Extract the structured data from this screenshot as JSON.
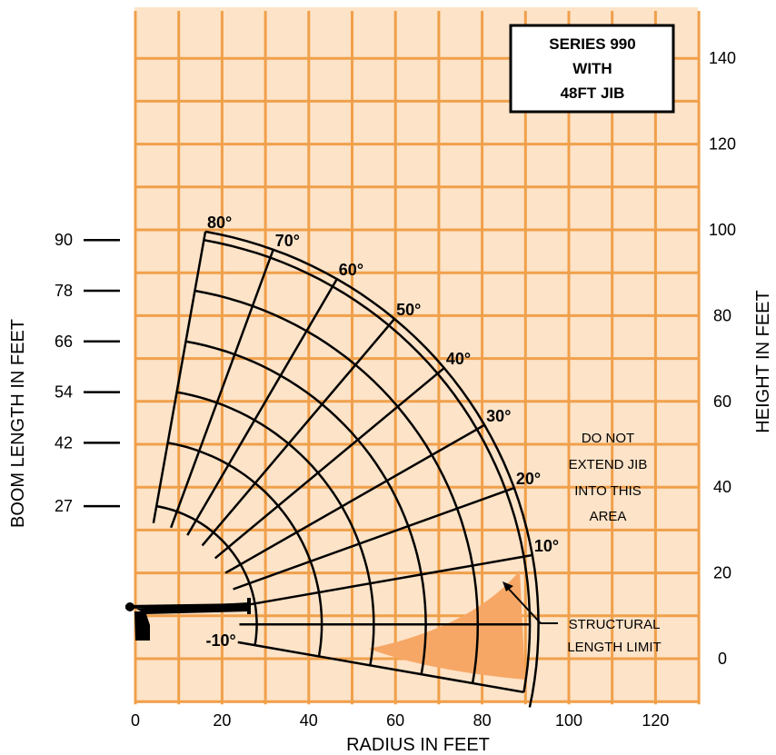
{
  "chart_data": {
    "type": "diagram",
    "title": [
      "SERIES 990",
      "WITH",
      "48FT JIB"
    ],
    "xlabel": "RADIUS IN FEET",
    "ylabel_right": "HEIGHT IN FEET",
    "ylabel_left": "BOOM LENGTH IN FEET",
    "x_ticks": [
      0,
      20,
      40,
      60,
      80,
      100,
      120
    ],
    "y_ticks": [
      0,
      20,
      40,
      60,
      80,
      100,
      120,
      140
    ],
    "xlim": [
      0,
      130
    ],
    "ylim": [
      -10,
      150
    ],
    "grid": true,
    "boom_lengths": [
      27,
      42,
      54,
      66,
      78,
      90
    ],
    "boom_length_labels": [
      "27",
      "42",
      "54",
      "66",
      "78",
      "90"
    ],
    "angles": [
      -10,
      0,
      10,
      20,
      30,
      40,
      50,
      60,
      70,
      80
    ],
    "angle_labels": [
      "-10°",
      "10°",
      "20°",
      "30°",
      "40°",
      "50°",
      "60°",
      "70°",
      "80°"
    ],
    "no_extend_note": [
      "DO NOT",
      "EXTEND JIB",
      "INTO THIS",
      "AREA"
    ],
    "limit_label": [
      "STRUCTURAL",
      "LENGTH LIMIT"
    ],
    "colors": {
      "background": "#fde3c8",
      "grid": "#f0a04b",
      "restricted_area": "#f7a765",
      "lines": "#000000"
    }
  }
}
